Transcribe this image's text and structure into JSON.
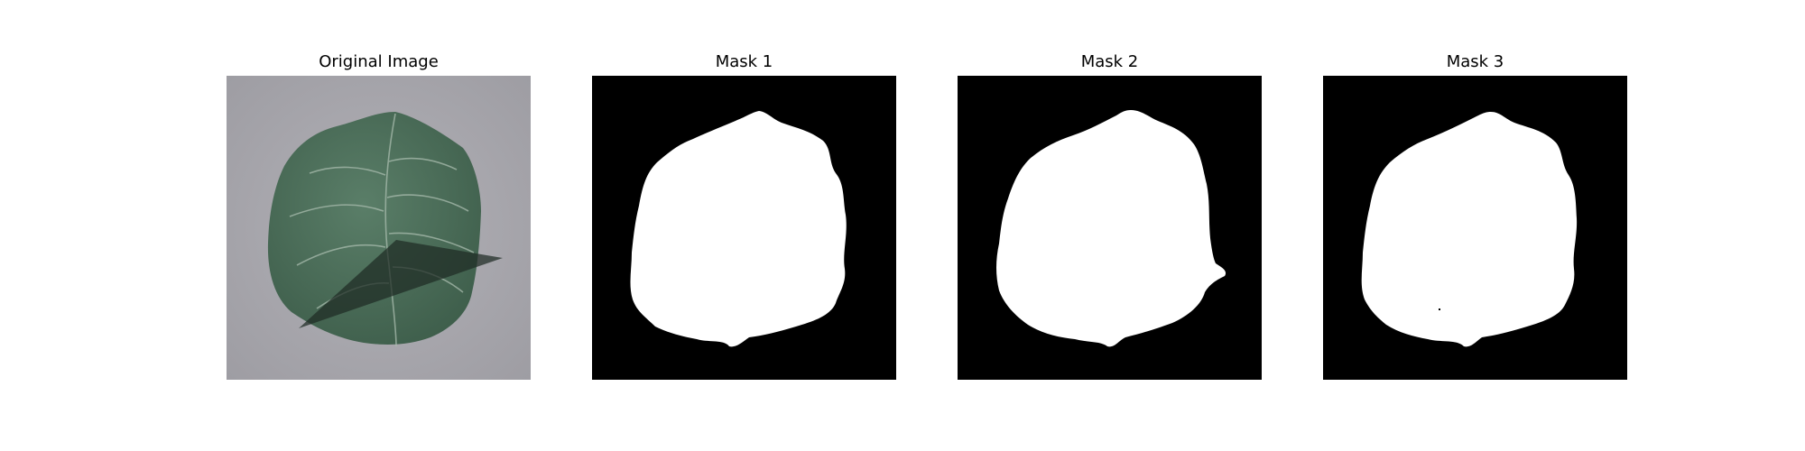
{
  "panels": [
    {
      "title": "Original Image",
      "content": "leaf-photo"
    },
    {
      "title": "Mask 1",
      "content": "binary-mask"
    },
    {
      "title": "Mask 2",
      "content": "binary-mask"
    },
    {
      "title": "Mask 3",
      "content": "binary-mask"
    }
  ],
  "colors": {
    "background": "#ffffff",
    "mask_background": "#000000",
    "mask_foreground": "#ffffff",
    "photo_background": "#a9a8ae",
    "leaf": "#4b6e58",
    "leaf_vein": "#a5b8aa",
    "shadow": "#1f2b24"
  }
}
